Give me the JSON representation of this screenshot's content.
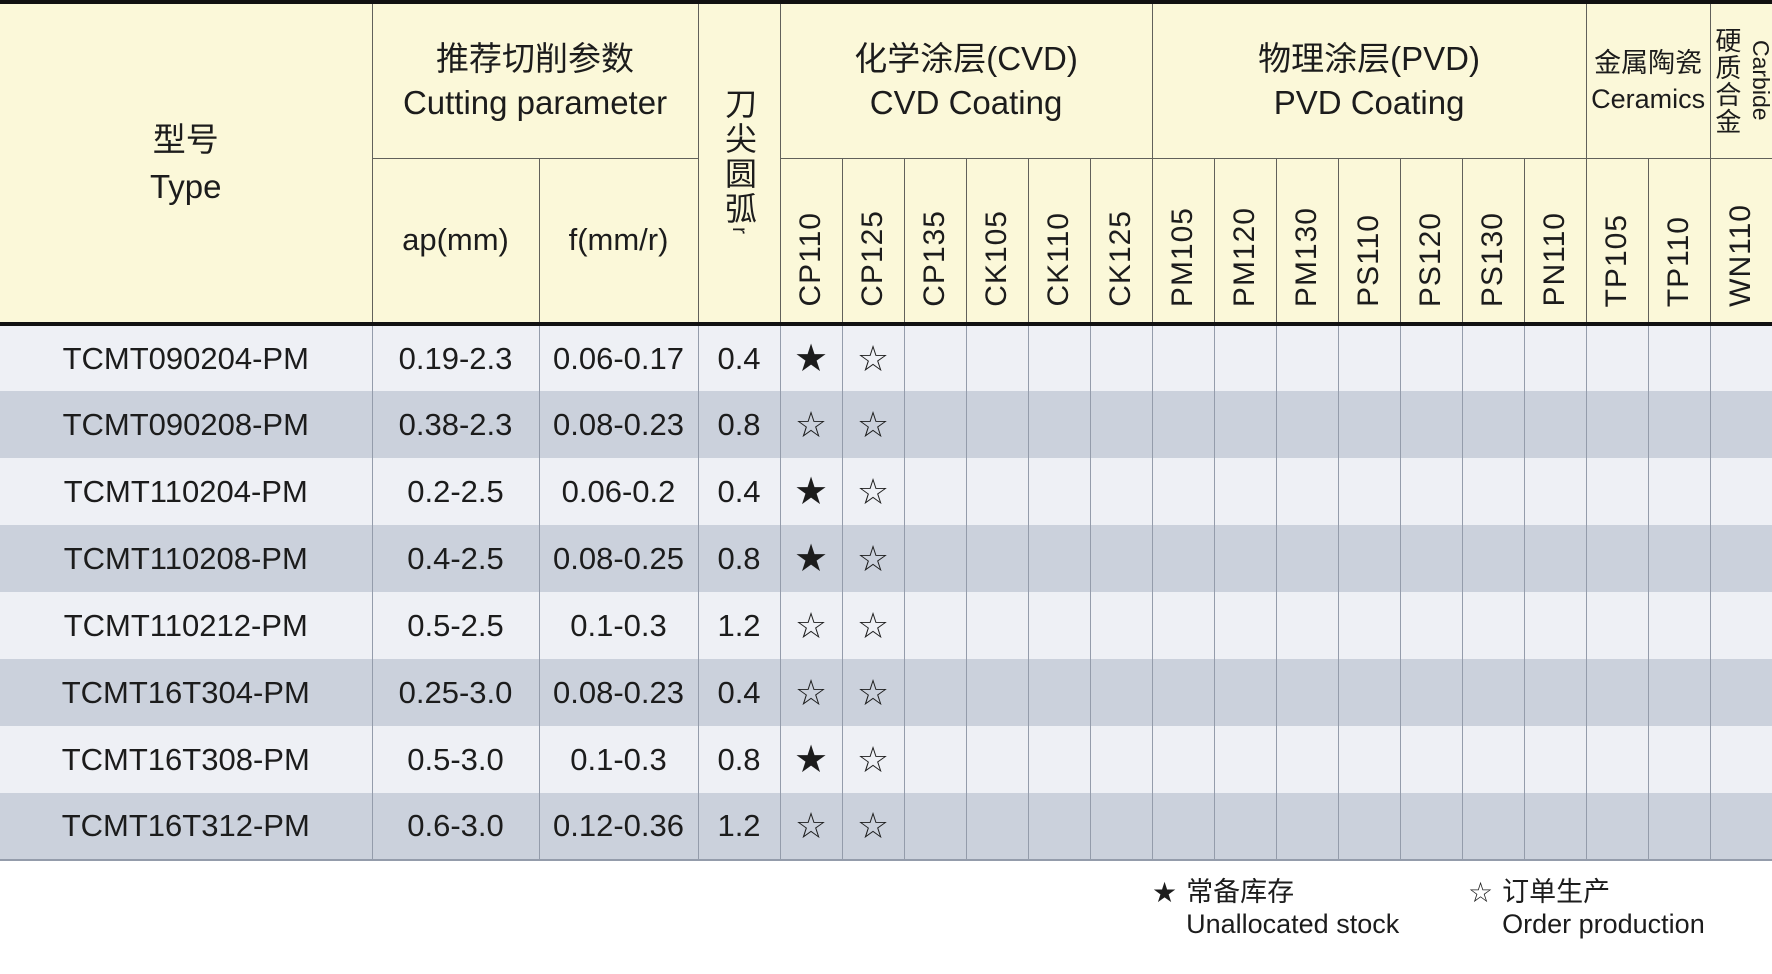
{
  "header": {
    "type_zh": "型号",
    "type_en": "Type",
    "cutting_zh": "推荐切削参数",
    "cutting_en": "Cutting parameter",
    "ap": "ap(mm)",
    "f": "f(mm/r)",
    "nose_zh": "刀尖圆弧",
    "nose_suffix": "r",
    "groups": [
      {
        "zh": "化学涂层(CVD)",
        "en": "CVD Coating",
        "cols": [
          "CP110",
          "CP125",
          "CP135",
          "CK105",
          "CK110",
          "CK125"
        ]
      },
      {
        "zh": "物理涂层(PVD)",
        "en": "PVD Coating",
        "cols": [
          "PM105",
          "PM120",
          "PM130",
          "PS110",
          "PS120",
          "PS130",
          "PN110"
        ]
      },
      {
        "zh": "金属陶瓷",
        "en": "Ceramics",
        "cols": [
          "TP105",
          "TP110"
        ]
      },
      {
        "zh": "硬质合金",
        "en": "Carbide",
        "cols": [
          "WN110"
        ]
      }
    ]
  },
  "symbols": {
    "filled": "★",
    "outline": "☆"
  },
  "rows": [
    {
      "type": "TCMT090204-PM",
      "ap": "0.19-2.3",
      "f": "0.06-0.17",
      "r": "0.4",
      "marks": [
        "filled",
        "outline",
        "",
        "",
        "",
        "",
        "",
        "",
        "",
        "",
        "",
        "",
        "",
        "",
        "",
        ""
      ]
    },
    {
      "type": "TCMT090208-PM",
      "ap": "0.38-2.3",
      "f": "0.08-0.23",
      "r": "0.8",
      "marks": [
        "outline",
        "outline",
        "",
        "",
        "",
        "",
        "",
        "",
        "",
        "",
        "",
        "",
        "",
        "",
        "",
        ""
      ]
    },
    {
      "type": "TCMT110204-PM",
      "ap": "0.2-2.5",
      "f": "0.06-0.2",
      "r": "0.4",
      "marks": [
        "filled",
        "outline",
        "",
        "",
        "",
        "",
        "",
        "",
        "",
        "",
        "",
        "",
        "",
        "",
        "",
        ""
      ]
    },
    {
      "type": "TCMT110208-PM",
      "ap": "0.4-2.5",
      "f": "0.08-0.25",
      "r": "0.8",
      "marks": [
        "filled",
        "outline",
        "",
        "",
        "",
        "",
        "",
        "",
        "",
        "",
        "",
        "",
        "",
        "",
        "",
        ""
      ]
    },
    {
      "type": "TCMT110212-PM",
      "ap": "0.5-2.5",
      "f": "0.1-0.3",
      "r": "1.2",
      "marks": [
        "outline",
        "outline",
        "",
        "",
        "",
        "",
        "",
        "",
        "",
        "",
        "",
        "",
        "",
        "",
        "",
        ""
      ]
    },
    {
      "type": "TCMT16T304-PM",
      "ap": "0.25-3.0",
      "f": "0.08-0.23",
      "r": "0.4",
      "marks": [
        "outline",
        "outline",
        "",
        "",
        "",
        "",
        "",
        "",
        "",
        "",
        "",
        "",
        "",
        "",
        "",
        ""
      ]
    },
    {
      "type": "TCMT16T308-PM",
      "ap": "0.5-3.0",
      "f": "0.1-0.3",
      "r": "0.8",
      "marks": [
        "filled",
        "outline",
        "",
        "",
        "",
        "",
        "",
        "",
        "",
        "",
        "",
        "",
        "",
        "",
        "",
        ""
      ]
    },
    {
      "type": "TCMT16T312-PM",
      "ap": "0.6-3.0",
      "f": "0.12-0.36",
      "r": "1.2",
      "marks": [
        "outline",
        "outline",
        "",
        "",
        "",
        "",
        "",
        "",
        "",
        "",
        "",
        "",
        "",
        "",
        "",
        ""
      ]
    }
  ],
  "legend": [
    {
      "symbol": "★",
      "zh": "常备库存",
      "en": "Unallocated stock"
    },
    {
      "symbol": "☆",
      "zh": "订单生产",
      "en": "Order production"
    }
  ],
  "colors": {
    "header_bg": "#fbf8d9",
    "row_light": "#eef0f5",
    "row_dark": "#cbd1dc",
    "divider": "#111111",
    "grid_header": "#61615b",
    "grid_body": "#949cab",
    "text": "#1c1c1c"
  }
}
